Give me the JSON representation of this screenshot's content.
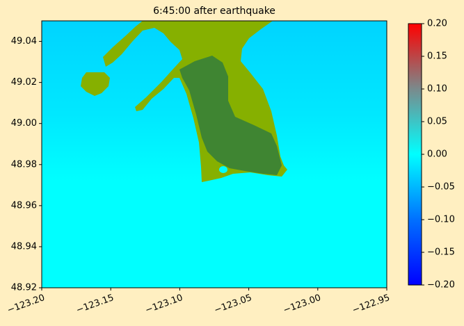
{
  "chart_data": {
    "type": "image",
    "title": "6:45:00 after earthquake",
    "xlim": [
      -123.2,
      -122.95
    ],
    "xticks": [
      {
        "value": -123.2,
        "label": "−123.20"
      },
      {
        "value": -123.15,
        "label": "−123.15"
      },
      {
        "value": -123.1,
        "label": "−123.10"
      },
      {
        "value": -123.05,
        "label": "−123.05"
      },
      {
        "value": -123.0,
        "label": "−123.00"
      },
      {
        "value": -122.95,
        "label": "−122.95"
      }
    ],
    "ylim": [
      48.92,
      49.05
    ],
    "yticks": [
      {
        "value": 48.92,
        "label": "48.92"
      },
      {
        "value": 48.94,
        "label": "48.94"
      },
      {
        "value": 48.96,
        "label": "48.96"
      },
      {
        "value": 48.98,
        "label": "48.98"
      },
      {
        "value": 49.0,
        "label": "49.00"
      },
      {
        "value": 49.02,
        "label": "49.02"
      },
      {
        "value": 49.04,
        "label": "49.04"
      }
    ],
    "colorbar": {
      "clim": [
        -0.2,
        0.2
      ],
      "colormap": [
        "#0000ff",
        "#0070ff",
        "#00ffff",
        "#7a8a8c",
        "#ff0000"
      ],
      "ticks": [
        {
          "value": -0.2,
          "label": "−0.20"
        },
        {
          "value": -0.15,
          "label": "−0.15"
        },
        {
          "value": -0.1,
          "label": "−0.10"
        },
        {
          "value": -0.05,
          "label": "−0.05"
        },
        {
          "value": 0,
          "label": "0.00"
        },
        {
          "value": 0.05,
          "label": "0.05"
        },
        {
          "value": 0.1,
          "label": "0.10"
        },
        {
          "value": 0.15,
          "label": "0.15"
        },
        {
          "value": 0.2,
          "label": "0.20"
        }
      ]
    }
  }
}
